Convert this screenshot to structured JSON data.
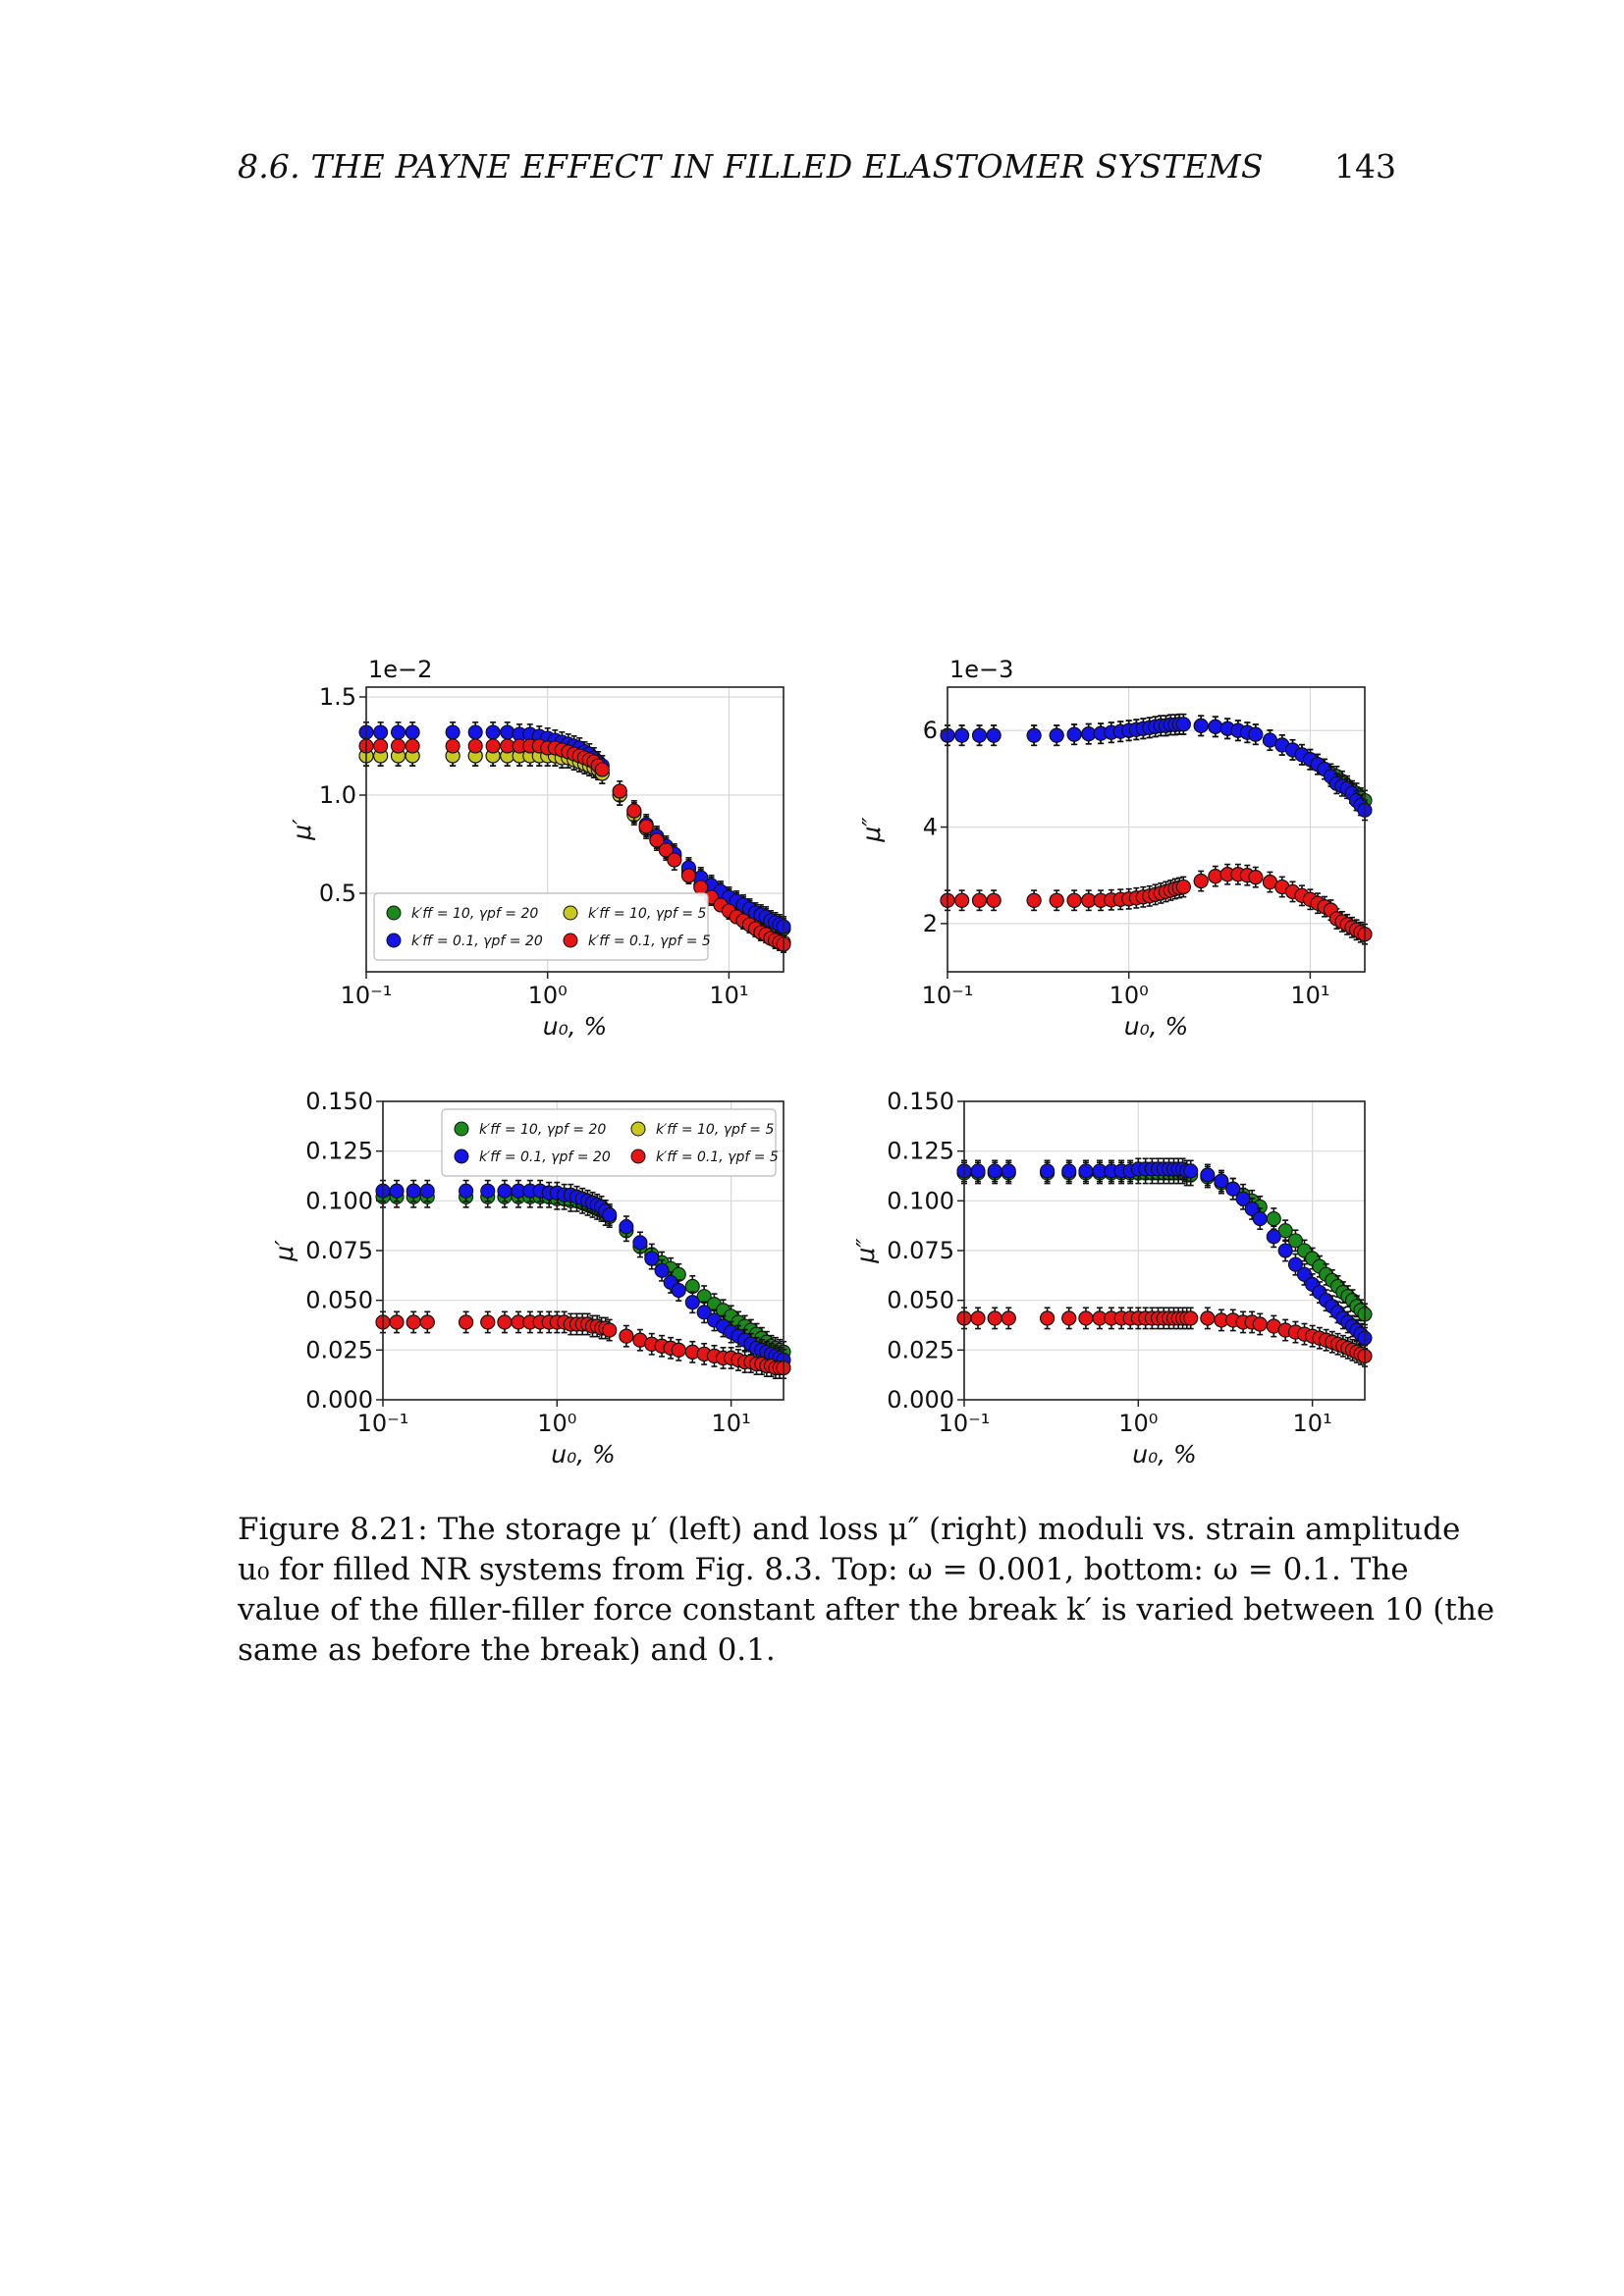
{
  "header": {
    "section_title": "8.6.   THE PAYNE EFFECT IN FILLED ELASTOMER SYSTEMS",
    "page_number": "143"
  },
  "caption": {
    "lines": [
      "Figure 8.21: The storage μ′ (left) and loss μ″ (right) moduli vs. strain amplitude",
      "u₀ for filled NR systems from Fig. 8.3. Top: ω = 0.001, bottom: ω = 0.1. The",
      "value of the filler-filler force constant after the break k′ is varied between 10 (the",
      "same as before the break) and 0.1."
    ]
  },
  "legend_labels": [
    "k′ff = 10, γpf = 20",
    "k′ff = 10, γpf = 5",
    "k′ff = 0.1, γpf = 20",
    "k′ff = 0.1, γpf = 5"
  ],
  "colors": {
    "green": "#1a8a1a",
    "yellow": "#c8c81e",
    "blue": "#1414e6",
    "red": "#e61414"
  },
  "chart_data": [
    {
      "type": "scatter",
      "panel": "top-left",
      "xscale": "log",
      "xlim": [
        0.1,
        20
      ],
      "xticks": [
        "10⁻¹",
        "10⁰",
        "10¹"
      ],
      "xlabel": "u₀, %",
      "ylabel": "μ′",
      "offset_label": "1e−2",
      "ylim": [
        0.1,
        1.55
      ],
      "yticks": [
        "0.5",
        "1.0",
        "1.5"
      ],
      "ytick_values": [
        0.5,
        1.0,
        1.5
      ],
      "grid": true,
      "legend": "lower-left",
      "error_bars": true,
      "x": [
        0.1,
        0.12,
        0.15,
        0.18,
        0.3,
        0.4,
        0.5,
        0.6,
        0.7,
        0.8,
        0.9,
        1.0,
        1.1,
        1.2,
        1.3,
        1.4,
        1.5,
        1.6,
        1.7,
        1.8,
        1.9,
        2.0,
        2.5,
        3.0,
        3.5,
        4.0,
        4.5,
        5.0,
        6.0,
        7.0,
        8.0,
        9.0,
        10,
        11,
        12,
        13,
        14,
        15,
        16,
        17,
        18,
        19,
        20
      ],
      "series": [
        {
          "legend_index": 0,
          "color": "green",
          "values": [
            1.2,
            1.2,
            1.2,
            1.2,
            1.2,
            1.2,
            1.2,
            1.2,
            1.2,
            1.2,
            1.2,
            1.2,
            1.2,
            1.19,
            1.19,
            1.18,
            1.17,
            1.16,
            1.15,
            1.14,
            1.13,
            1.11,
            1.0,
            0.91,
            0.84,
            0.78,
            0.73,
            0.69,
            0.62,
            0.57,
            0.53,
            0.5,
            0.47,
            0.45,
            0.43,
            0.41,
            0.39,
            0.38,
            0.37,
            0.35,
            0.34,
            0.33,
            0.32
          ]
        },
        {
          "legend_index": 1,
          "color": "yellow",
          "values": [
            1.2,
            1.2,
            1.2,
            1.2,
            1.2,
            1.2,
            1.2,
            1.2,
            1.2,
            1.2,
            1.2,
            1.2,
            1.2,
            1.19,
            1.19,
            1.18,
            1.17,
            1.16,
            1.15,
            1.14,
            1.13,
            1.11,
            1.0,
            0.9,
            0.83,
            0.77,
            0.72,
            0.67,
            0.6,
            0.54,
            0.49,
            0.46,
            0.42,
            0.4,
            0.37,
            0.35,
            0.33,
            0.31,
            0.3,
            0.29,
            0.27,
            0.26,
            0.25
          ]
        },
        {
          "legend_index": 2,
          "color": "blue",
          "values": [
            1.32,
            1.32,
            1.32,
            1.32,
            1.32,
            1.32,
            1.32,
            1.32,
            1.31,
            1.31,
            1.3,
            1.29,
            1.28,
            1.27,
            1.26,
            1.25,
            1.24,
            1.22,
            1.21,
            1.19,
            1.17,
            1.15,
            1.02,
            0.92,
            0.85,
            0.79,
            0.74,
            0.7,
            0.63,
            0.58,
            0.54,
            0.51,
            0.48,
            0.46,
            0.44,
            0.42,
            0.4,
            0.39,
            0.38,
            0.36,
            0.35,
            0.34,
            0.33
          ]
        },
        {
          "legend_index": 3,
          "color": "red",
          "values": [
            1.25,
            1.25,
            1.25,
            1.25,
            1.25,
            1.25,
            1.25,
            1.25,
            1.25,
            1.25,
            1.25,
            1.24,
            1.24,
            1.23,
            1.22,
            1.21,
            1.2,
            1.19,
            1.18,
            1.17,
            1.15,
            1.13,
            1.02,
            0.92,
            0.84,
            0.77,
            0.72,
            0.67,
            0.59,
            0.53,
            0.48,
            0.44,
            0.41,
            0.38,
            0.36,
            0.34,
            0.32,
            0.3,
            0.29,
            0.27,
            0.26,
            0.25,
            0.24
          ]
        }
      ]
    },
    {
      "type": "scatter",
      "panel": "top-right",
      "xscale": "log",
      "xlim": [
        0.1,
        20
      ],
      "xticks": [
        "10⁻¹",
        "10⁰",
        "10¹"
      ],
      "xlabel": "u₀, %",
      "ylabel": "μ″",
      "offset_label": "1e−3",
      "ylim": [
        1.0,
        6.9
      ],
      "yticks": [
        "2",
        "4",
        "6"
      ],
      "ytick_values": [
        2,
        4,
        6
      ],
      "grid": true,
      "legend": "none",
      "error_bars": true,
      "x": [
        0.1,
        0.12,
        0.15,
        0.18,
        0.3,
        0.4,
        0.5,
        0.6,
        0.7,
        0.8,
        0.9,
        1.0,
        1.1,
        1.2,
        1.3,
        1.4,
        1.5,
        1.6,
        1.7,
        1.8,
        1.9,
        2.0,
        2.5,
        3.0,
        3.5,
        4.0,
        4.5,
        5.0,
        6.0,
        7.0,
        8.0,
        9.0,
        10,
        11,
        12,
        13,
        14,
        15,
        16,
        17,
        18,
        19,
        20
      ],
      "series": [
        {
          "legend_index": 0,
          "color": "green",
          "values": [
            5.9,
            5.9,
            5.9,
            5.9,
            5.9,
            5.9,
            5.92,
            5.93,
            5.94,
            5.96,
            5.98,
            6.0,
            6.02,
            6.04,
            6.06,
            6.08,
            6.1,
            6.1,
            6.12,
            6.12,
            6.13,
            6.13,
            6.1,
            6.08,
            6.04,
            6.0,
            5.96,
            5.92,
            5.8,
            5.7,
            5.6,
            5.5,
            5.4,
            5.3,
            5.2,
            5.1,
            5.05,
            4.95,
            4.85,
            4.75,
            4.7,
            4.6,
            4.55
          ]
        },
        {
          "legend_index": 1,
          "color": "yellow",
          "values": [
            2.48,
            2.48,
            2.48,
            2.48,
            2.48,
            2.48,
            2.48,
            2.48,
            2.48,
            2.49,
            2.5,
            2.51,
            2.53,
            2.55,
            2.57,
            2.6,
            2.63,
            2.66,
            2.69,
            2.72,
            2.74,
            2.76,
            2.88,
            2.98,
            3.02,
            3.02,
            3.0,
            2.96,
            2.86,
            2.76,
            2.66,
            2.58,
            2.5,
            2.42,
            2.35,
            2.28,
            2.1,
            2.04,
            1.98,
            1.92,
            1.87,
            1.82,
            1.78
          ]
        },
        {
          "legend_index": 2,
          "color": "blue",
          "values": [
            5.9,
            5.9,
            5.9,
            5.9,
            5.9,
            5.9,
            5.92,
            5.93,
            5.94,
            5.96,
            5.98,
            6.0,
            6.02,
            6.04,
            6.06,
            6.08,
            6.1,
            6.1,
            6.12,
            6.12,
            6.13,
            6.13,
            6.1,
            6.08,
            6.04,
            6.0,
            5.96,
            5.92,
            5.8,
            5.7,
            5.6,
            5.5,
            5.4,
            5.3,
            5.2,
            5.05,
            4.9,
            4.85,
            4.8,
            4.7,
            4.55,
            4.45,
            4.35
          ]
        },
        {
          "legend_index": 3,
          "color": "red",
          "values": [
            2.48,
            2.48,
            2.48,
            2.48,
            2.48,
            2.48,
            2.48,
            2.48,
            2.48,
            2.49,
            2.5,
            2.51,
            2.53,
            2.55,
            2.57,
            2.6,
            2.63,
            2.66,
            2.69,
            2.72,
            2.74,
            2.76,
            2.88,
            2.98,
            3.02,
            3.02,
            3.0,
            2.96,
            2.86,
            2.76,
            2.66,
            2.58,
            2.5,
            2.42,
            2.35,
            2.28,
            2.1,
            2.04,
            1.98,
            1.92,
            1.87,
            1.82,
            1.78
          ]
        }
      ]
    },
    {
      "type": "scatter",
      "panel": "bottom-left",
      "xscale": "log",
      "xlim": [
        0.1,
        20
      ],
      "xticks": [
        "10⁻¹",
        "10⁰",
        "10¹"
      ],
      "xlabel": "u₀, %",
      "ylabel": "μ′",
      "offset_label": "",
      "ylim": [
        0.0,
        0.15
      ],
      "yticks": [
        "0.000",
        "0.025",
        "0.050",
        "0.075",
        "0.100",
        "0.125",
        "0.150"
      ],
      "ytick_values": [
        0.0,
        0.025,
        0.05,
        0.075,
        0.1,
        0.125,
        0.15
      ],
      "grid": true,
      "legend": "top-right",
      "error_bars": true,
      "x": [
        0.1,
        0.12,
        0.15,
        0.18,
        0.3,
        0.4,
        0.5,
        0.6,
        0.7,
        0.8,
        0.9,
        1.0,
        1.1,
        1.2,
        1.3,
        1.4,
        1.5,
        1.6,
        1.7,
        1.8,
        1.9,
        2.0,
        2.5,
        3.0,
        3.5,
        4.0,
        4.5,
        5.0,
        6.0,
        7.0,
        8.0,
        9.0,
        10,
        11,
        12,
        13,
        14,
        15,
        16,
        17,
        18,
        19,
        20
      ],
      "series": [
        {
          "legend_index": 0,
          "color": "green",
          "values": [
            0.102,
            0.102,
            0.102,
            0.102,
            0.102,
            0.102,
            0.102,
            0.102,
            0.102,
            0.102,
            0.102,
            0.101,
            0.101,
            0.1,
            0.1,
            0.099,
            0.098,
            0.097,
            0.096,
            0.095,
            0.093,
            0.092,
            0.085,
            0.077,
            0.073,
            0.069,
            0.066,
            0.063,
            0.057,
            0.052,
            0.048,
            0.045,
            0.042,
            0.039,
            0.037,
            0.035,
            0.033,
            0.031,
            0.029,
            0.027,
            0.026,
            0.025,
            0.024
          ]
        },
        {
          "legend_index": 1,
          "color": "yellow",
          "values": [
            0.039,
            0.039,
            0.039,
            0.039,
            0.039,
            0.039,
            0.039,
            0.039,
            0.039,
            0.039,
            0.039,
            0.039,
            0.039,
            0.038,
            0.038,
            0.038,
            0.038,
            0.037,
            0.037,
            0.036,
            0.036,
            0.035,
            0.032,
            0.03,
            0.028,
            0.027,
            0.026,
            0.025,
            0.024,
            0.023,
            0.022,
            0.021,
            0.021,
            0.02,
            0.019,
            0.019,
            0.018,
            0.018,
            0.017,
            0.017,
            0.016,
            0.016,
            0.016
          ]
        },
        {
          "legend_index": 2,
          "color": "blue",
          "values": [
            0.105,
            0.105,
            0.105,
            0.105,
            0.105,
            0.105,
            0.105,
            0.105,
            0.105,
            0.105,
            0.104,
            0.104,
            0.103,
            0.103,
            0.102,
            0.101,
            0.1,
            0.099,
            0.098,
            0.097,
            0.095,
            0.093,
            0.087,
            0.079,
            0.071,
            0.065,
            0.059,
            0.055,
            0.049,
            0.044,
            0.04,
            0.037,
            0.034,
            0.032,
            0.03,
            0.028,
            0.026,
            0.025,
            0.024,
            0.023,
            0.022,
            0.021,
            0.02
          ]
        },
        {
          "legend_index": 3,
          "color": "red",
          "values": [
            0.039,
            0.039,
            0.039,
            0.039,
            0.039,
            0.039,
            0.039,
            0.039,
            0.039,
            0.039,
            0.039,
            0.039,
            0.039,
            0.038,
            0.038,
            0.038,
            0.038,
            0.037,
            0.037,
            0.036,
            0.036,
            0.035,
            0.032,
            0.03,
            0.028,
            0.027,
            0.026,
            0.025,
            0.024,
            0.023,
            0.022,
            0.021,
            0.021,
            0.02,
            0.019,
            0.019,
            0.018,
            0.018,
            0.017,
            0.017,
            0.016,
            0.016,
            0.016
          ]
        }
      ]
    },
    {
      "type": "scatter",
      "panel": "bottom-right",
      "xscale": "log",
      "xlim": [
        0.1,
        20
      ],
      "xticks": [
        "10⁻¹",
        "10⁰",
        "10¹"
      ],
      "xlabel": "u₀, %",
      "ylabel": "μ″",
      "offset_label": "",
      "ylim": [
        0.0,
        0.15
      ],
      "yticks": [
        "0.000",
        "0.025",
        "0.050",
        "0.075",
        "0.100",
        "0.125",
        "0.150"
      ],
      "ytick_values": [
        0.0,
        0.025,
        0.05,
        0.075,
        0.1,
        0.125,
        0.15
      ],
      "grid": true,
      "legend": "none",
      "error_bars": true,
      "x": [
        0.1,
        0.12,
        0.15,
        0.18,
        0.3,
        0.4,
        0.5,
        0.6,
        0.7,
        0.8,
        0.9,
        1.0,
        1.1,
        1.2,
        1.3,
        1.4,
        1.5,
        1.6,
        1.7,
        1.8,
        1.9,
        2.0,
        2.5,
        3.0,
        3.5,
        4.0,
        4.5,
        5.0,
        6.0,
        7.0,
        8.0,
        9.0,
        10,
        11,
        12,
        13,
        14,
        15,
        16,
        17,
        18,
        19,
        20
      ],
      "series": [
        {
          "legend_index": 0,
          "color": "green",
          "values": [
            0.114,
            0.114,
            0.114,
            0.114,
            0.114,
            0.114,
            0.114,
            0.114,
            0.114,
            0.114,
            0.114,
            0.114,
            0.114,
            0.114,
            0.114,
            0.114,
            0.114,
            0.114,
            0.114,
            0.114,
            0.113,
            0.113,
            0.112,
            0.109,
            0.106,
            0.103,
            0.1,
            0.097,
            0.091,
            0.085,
            0.08,
            0.075,
            0.071,
            0.067,
            0.063,
            0.06,
            0.057,
            0.054,
            0.052,
            0.05,
            0.047,
            0.045,
            0.043
          ]
        },
        {
          "legend_index": 1,
          "color": "yellow",
          "values": [
            0.041,
            0.041,
            0.041,
            0.041,
            0.041,
            0.041,
            0.041,
            0.041,
            0.041,
            0.041,
            0.041,
            0.041,
            0.041,
            0.041,
            0.041,
            0.041,
            0.041,
            0.041,
            0.041,
            0.041,
            0.041,
            0.041,
            0.041,
            0.04,
            0.04,
            0.039,
            0.039,
            0.038,
            0.037,
            0.035,
            0.034,
            0.033,
            0.032,
            0.031,
            0.03,
            0.029,
            0.028,
            0.027,
            0.026,
            0.025,
            0.024,
            0.023,
            0.022
          ]
        },
        {
          "legend_index": 2,
          "color": "blue",
          "values": [
            0.115,
            0.115,
            0.115,
            0.115,
            0.115,
            0.115,
            0.115,
            0.115,
            0.115,
            0.115,
            0.115,
            0.116,
            0.116,
            0.116,
            0.116,
            0.116,
            0.116,
            0.116,
            0.116,
            0.116,
            0.115,
            0.115,
            0.113,
            0.11,
            0.106,
            0.101,
            0.096,
            0.091,
            0.082,
            0.075,
            0.068,
            0.063,
            0.058,
            0.054,
            0.05,
            0.047,
            0.044,
            0.041,
            0.039,
            0.037,
            0.035,
            0.033,
            0.031
          ]
        },
        {
          "legend_index": 3,
          "color": "red",
          "values": [
            0.041,
            0.041,
            0.041,
            0.041,
            0.041,
            0.041,
            0.041,
            0.041,
            0.041,
            0.041,
            0.041,
            0.041,
            0.041,
            0.041,
            0.041,
            0.041,
            0.041,
            0.041,
            0.041,
            0.041,
            0.041,
            0.041,
            0.041,
            0.04,
            0.04,
            0.039,
            0.039,
            0.038,
            0.037,
            0.035,
            0.034,
            0.033,
            0.032,
            0.031,
            0.03,
            0.029,
            0.028,
            0.027,
            0.026,
            0.025,
            0.024,
            0.023,
            0.022
          ]
        }
      ]
    }
  ]
}
